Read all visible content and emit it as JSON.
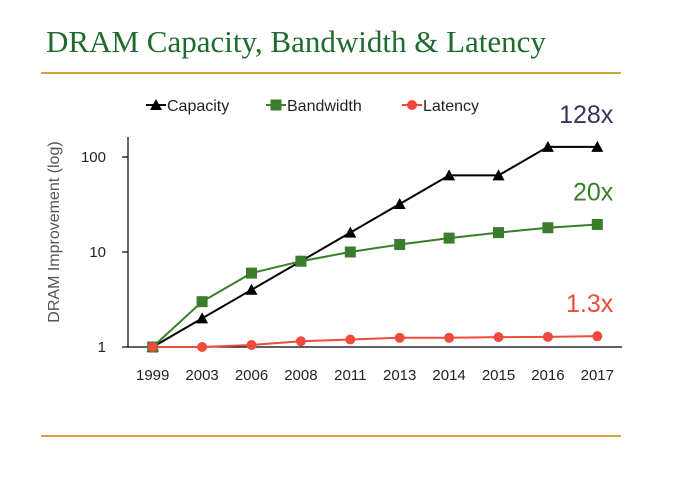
{
  "slide": {
    "title": "DRAM Capacity, Bandwidth & Latency"
  },
  "chart_data": {
    "type": "line",
    "ylabel": "DRAM Improvement (log)",
    "y_scale": "log",
    "ylim": [
      1,
      140
    ],
    "yticks": [
      1,
      10,
      100
    ],
    "ytick_labels": [
      "1",
      "10",
      "100"
    ],
    "categories": [
      "1999",
      "2003",
      "2006",
      "2008",
      "2011",
      "2013",
      "2014",
      "2015",
      "2016",
      "2017"
    ],
    "legend_position": "top",
    "grid": false,
    "series": [
      {
        "name": "Capacity",
        "marker": "triangle",
        "color": "#000000",
        "values": [
          1,
          2,
          4,
          8,
          16,
          32,
          64,
          64,
          128,
          128
        ]
      },
      {
        "name": "Bandwidth",
        "marker": "square",
        "color": "#3a7d2c",
        "values": [
          1,
          3,
          6,
          8,
          10,
          12,
          14,
          16,
          18,
          19.5
        ]
      },
      {
        "name": "Latency",
        "marker": "circle",
        "color": "#f04a3c",
        "values": [
          1,
          1,
          1.05,
          1.15,
          1.2,
          1.25,
          1.25,
          1.27,
          1.28,
          1.3
        ]
      }
    ],
    "annotations": [
      {
        "series": "Capacity",
        "text": "128x",
        "color": "#3d3258"
      },
      {
        "series": "Bandwidth",
        "text": "20x",
        "color": "#3a7d2c"
      },
      {
        "series": "Latency",
        "text": "1.3x",
        "color": "#f04a3c"
      }
    ]
  }
}
